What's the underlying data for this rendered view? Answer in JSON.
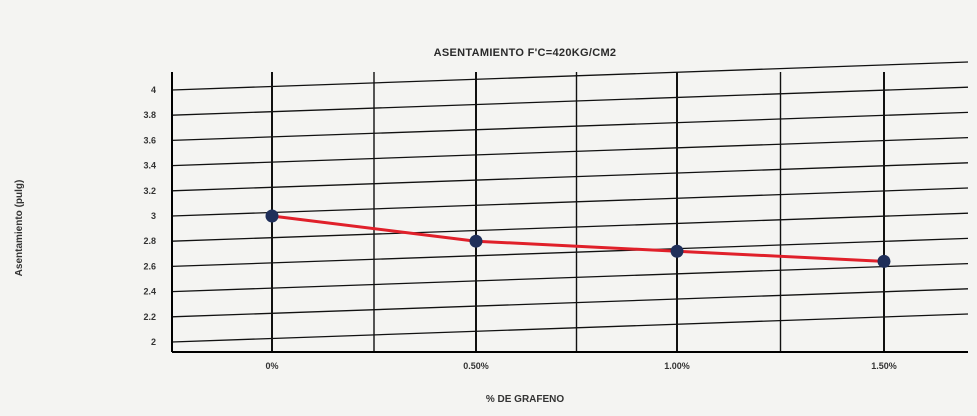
{
  "chart_data": {
    "type": "line",
    "title": "ASENTAMIENTO F'C=420KG/CM2",
    "xlabel": "% DE GRAFENO",
    "ylabel": "Asentamiento (pulg)",
    "categories": [
      "0%",
      "0.50%",
      "1.00%",
      "1.50%"
    ],
    "series": [
      {
        "name": "",
        "values": [
          3.0,
          2.8,
          2.72,
          2.64
        ]
      }
    ],
    "yticks": [
      "4",
      "3.8",
      "3.6",
      "3.4",
      "3.2",
      "3",
      "2.8",
      "2.6",
      "2.4",
      "2.2",
      "2"
    ],
    "ylim": [
      2,
      4
    ],
    "grid": true,
    "colors": {
      "line": "#e0202a",
      "marker": "#1f2f5a",
      "grid": "#111111"
    }
  }
}
